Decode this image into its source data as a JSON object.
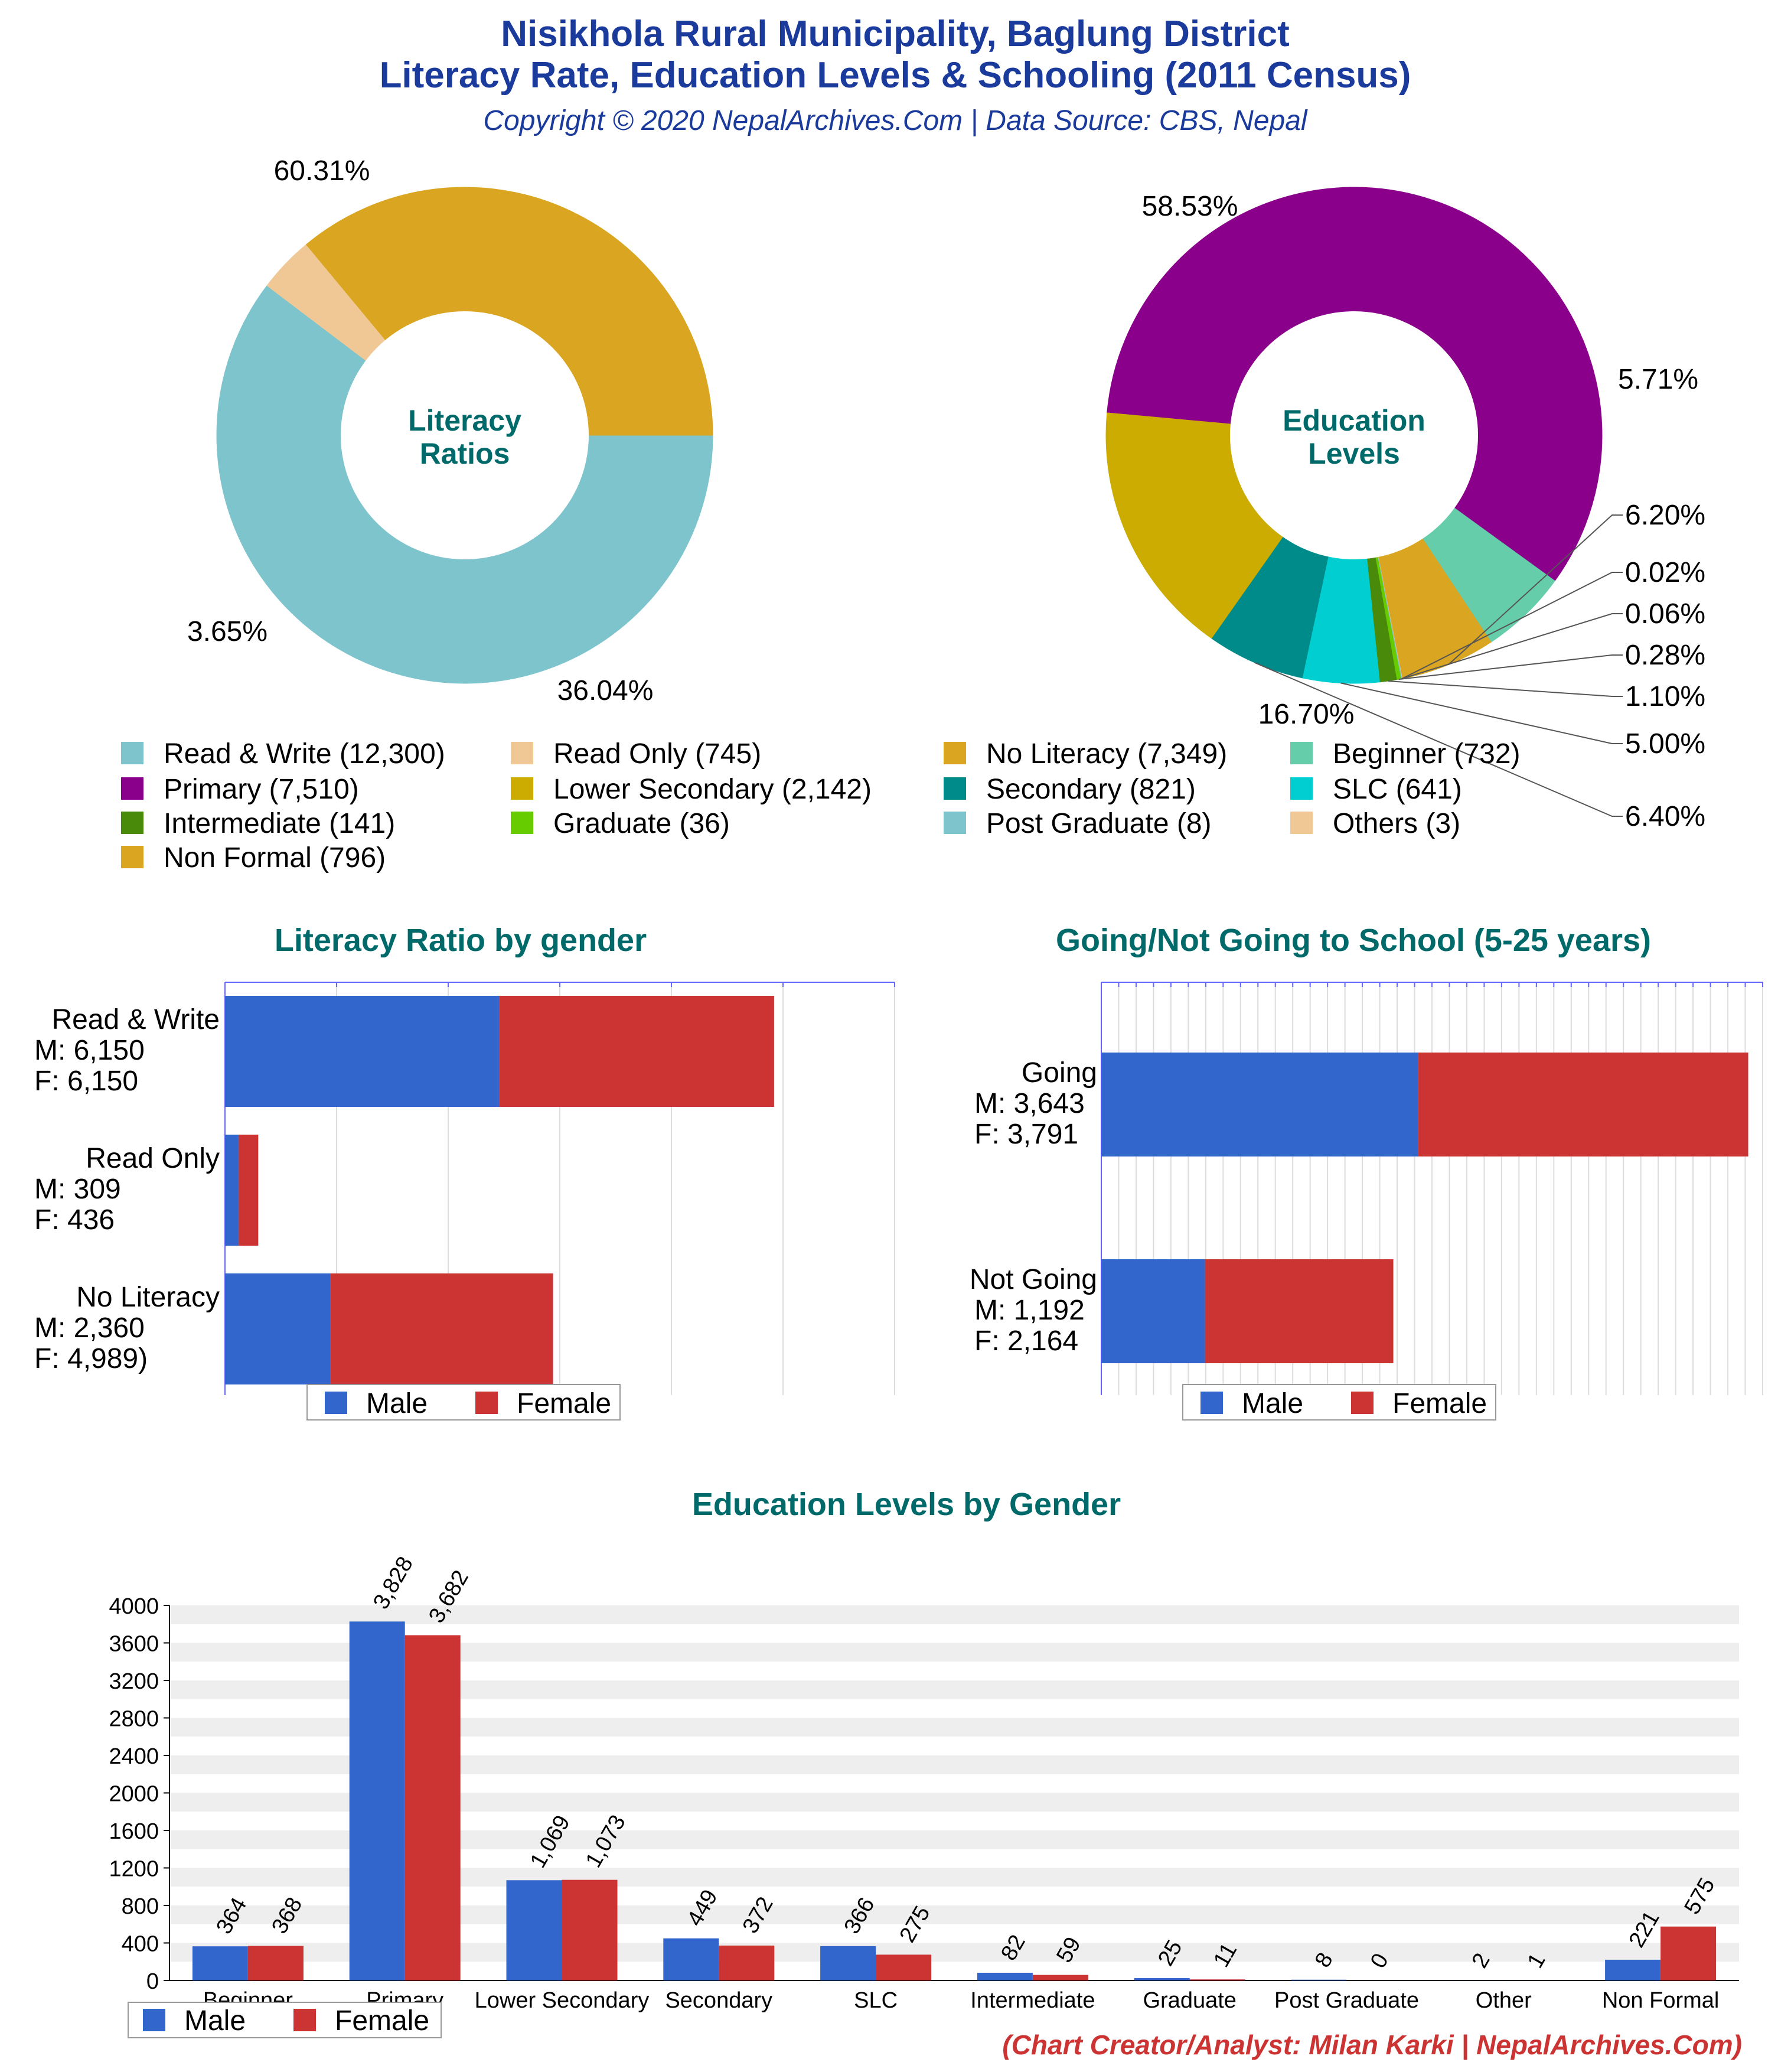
{
  "header": {
    "title_line1": "Nisikhola Rural Municipality, Baglung District",
    "title_line2": "Literacy Rate, Education Levels & Schooling (2011 Census)",
    "copyright": "Copyright © 2020 NepalArchives.Com | Data Source: CBS, Nepal"
  },
  "footer": {
    "credit": "(Chart Creator/Analyst: Milan Karki | NepalArchives.Com)"
  },
  "colors": {
    "title": "#1a3a9c",
    "heading": "#006a6a",
    "male": "#3366cc",
    "female": "#cc3333",
    "credit": "#cc3333"
  },
  "chart_data": [
    {
      "type": "pie",
      "title": "Literacy Ratios",
      "slices": [
        {
          "label": "Read & Write",
          "value": 12300,
          "percent_label": "60.31%",
          "color": "#7ec4cc"
        },
        {
          "label": "Read Only",
          "value": 745,
          "percent_label": "3.65%",
          "color": "#f0c896"
        },
        {
          "label": "No Literacy",
          "value": 7349,
          "percent_label": "36.04%",
          "color": "#daa520"
        }
      ]
    },
    {
      "type": "pie",
      "title": "Education Levels",
      "slices": [
        {
          "label": "Primary",
          "value": 7510,
          "percent_label": "58.53%",
          "color": "#8b008b"
        },
        {
          "label": "Beginner",
          "value": 732,
          "percent_label": "5.71%",
          "color": "#66cdaa"
        },
        {
          "label": "Non Formal",
          "value": 796,
          "percent_label": "6.20%",
          "color": "#daa520"
        },
        {
          "label": "Others",
          "value": 3,
          "percent_label": "0.02%",
          "color": "#f0c896"
        },
        {
          "label": "Post Graduate",
          "value": 8,
          "percent_label": "0.06%",
          "color": "#7ec4cc"
        },
        {
          "label": "Graduate",
          "value": 36,
          "percent_label": "0.28%",
          "color": "#66cc00"
        },
        {
          "label": "Intermediate",
          "value": 141,
          "percent_label": "1.10%",
          "color": "#4a8a0a"
        },
        {
          "label": "SLC",
          "value": 641,
          "percent_label": "5.00%",
          "color": "#00ced1"
        },
        {
          "label": "Secondary",
          "value": 821,
          "percent_label": "6.40%",
          "color": "#008b8b"
        },
        {
          "label": "Lower Secondary",
          "value": 2142,
          "percent_label": "16.70%",
          "color": "#ccac00"
        }
      ]
    },
    {
      "type": "bar",
      "orientation": "horizontal",
      "stacked": true,
      "title": "Literacy Ratio by gender",
      "categories": [
        {
          "label": "Read & Write",
          "male_text": "M: 6,150",
          "female_text": "F: 6,150"
        },
        {
          "label": "Read Only",
          "male_text": "M: 309",
          "female_text": "F: 436"
        },
        {
          "label": "No Literacy",
          "male_text": "M: 2,360",
          "female_text": "F: 4,989)"
        }
      ],
      "series": [
        {
          "name": "Male",
          "values": [
            6150,
            309,
            2360
          ]
        },
        {
          "name": "Female",
          "values": [
            6150,
            436,
            4989
          ]
        }
      ],
      "xlim": [
        0,
        15000
      ],
      "legend": "bottom"
    },
    {
      "type": "bar",
      "orientation": "horizontal",
      "stacked": true,
      "title": "Going/Not Going to School (5-25 years)",
      "categories": [
        {
          "label": "Going",
          "male_text": "M: 3,643",
          "female_text": "F: 3,791"
        },
        {
          "label": "Not Going",
          "male_text": "M: 1,192",
          "female_text": "F: 2,164"
        }
      ],
      "series": [
        {
          "name": "Male",
          "values": [
            3643,
            1192
          ]
        },
        {
          "name": "Female",
          "values": [
            3791,
            2164
          ]
        }
      ],
      "xlim": [
        0,
        7600
      ],
      "legend": "bottom"
    },
    {
      "type": "bar",
      "title": "Education Levels by Gender",
      "categories": [
        "Beginner",
        "Primary",
        "Lower Secondary",
        "Secondary",
        "SLC",
        "Intermediate",
        "Graduate",
        "Post Graduate",
        "Other",
        "Non Formal"
      ],
      "series": [
        {
          "name": "Male",
          "values": [
            364,
            3828,
            1069,
            449,
            366,
            82,
            25,
            8,
            2,
            221
          ],
          "value_labels": [
            "364",
            "3,828",
            "1,069",
            "449",
            "366",
            "82",
            "25",
            "8",
            "2",
            "221"
          ]
        },
        {
          "name": "Female",
          "values": [
            368,
            3682,
            1073,
            372,
            275,
            59,
            11,
            0,
            1,
            575
          ],
          "value_labels": [
            "368",
            "3,682",
            "1,073",
            "372",
            "275",
            "59",
            "11",
            "0",
            "1",
            "575"
          ]
        }
      ],
      "ylim": [
        0,
        4000
      ],
      "yticks": [
        "0",
        "400",
        "800",
        "1200",
        "1600",
        "2000",
        "2400",
        "2800",
        "3200",
        "3600",
        "4000"
      ],
      "legend": "bottom-left"
    }
  ],
  "legend_top": [
    {
      "label": "Read & Write (12,300)",
      "color": "#7ec4cc"
    },
    {
      "label": "Read Only (745)",
      "color": "#f0c896"
    },
    {
      "label": "No Literacy (7,349)",
      "color": "#daa520"
    },
    {
      "label": "Beginner (732)",
      "color": "#66cdaa"
    },
    {
      "label": "Primary (7,510)",
      "color": "#8b008b"
    },
    {
      "label": "Lower Secondary (2,142)",
      "color": "#ccac00"
    },
    {
      "label": "Secondary (821)",
      "color": "#008b8b"
    },
    {
      "label": "SLC (641)",
      "color": "#00ced1"
    },
    {
      "label": "Intermediate (141)",
      "color": "#4a8a0a"
    },
    {
      "label": "Graduate (36)",
      "color": "#66cc00"
    },
    {
      "label": "Post Graduate (8)",
      "color": "#7ec4cc"
    },
    {
      "label": "Others (3)",
      "color": "#f0c896"
    },
    {
      "label": "Non Formal (796)",
      "color": "#daa520"
    }
  ],
  "pie_centers": [
    {
      "line1": "Literacy",
      "line2": "Ratios"
    },
    {
      "line1": "Education",
      "line2": "Levels"
    }
  ]
}
